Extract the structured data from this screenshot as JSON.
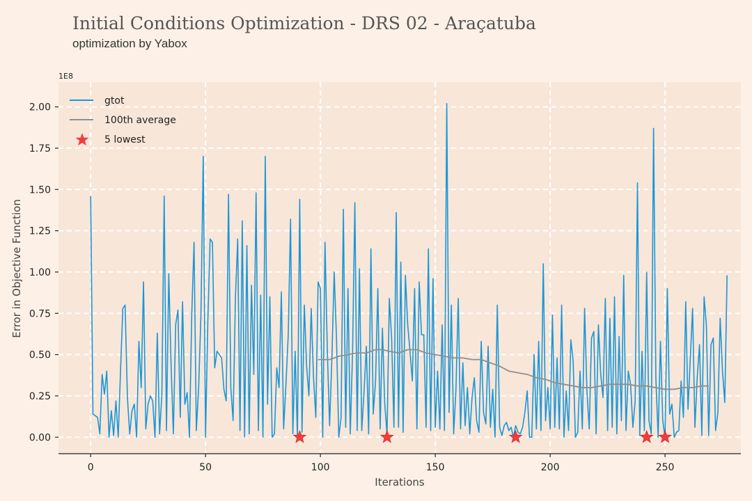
{
  "chart_data": {
    "type": "line",
    "title": "Initial Conditions Optimization - DRS 02 - Araçatuba",
    "subtitle": "optimization by Yabox",
    "xlabel": "Iterations",
    "ylabel": "Error in Objective Function",
    "y_scale_label": "1E8",
    "xlim": [
      -14,
      283
    ],
    "ylim": [
      -0.1,
      2.15
    ],
    "x_ticks": [
      0,
      50,
      100,
      150,
      200,
      250
    ],
    "y_ticks": [
      0.0,
      0.25,
      0.5,
      0.75,
      1.0,
      1.25,
      1.5,
      1.75,
      2.0
    ],
    "y_tick_labels": [
      "0.00",
      "0.25",
      "0.50",
      "0.75",
      "1.00",
      "1.25",
      "1.50",
      "1.75",
      "2.00"
    ],
    "grid": true,
    "legend_position": "top-left",
    "colors": {
      "background": "#fdf1e7",
      "plot_area": "#f8e6d9",
      "grid": "#ffffff",
      "gtot": "#1a96d6",
      "average": "#8f8f8f",
      "lowest": "#f23c3c"
    },
    "series": [
      {
        "name": "gtot",
        "x_start": 0,
        "values": [
          1.46,
          0.14,
          0.13,
          0.12,
          0.02,
          0.38,
          0.26,
          0.4,
          0.0,
          0.16,
          0.01,
          0.22,
          0.0,
          0.4,
          0.78,
          0.8,
          0.24,
          0.02,
          0.16,
          0.2,
          0.0,
          0.58,
          0.3,
          0.94,
          0.05,
          0.2,
          0.25,
          0.22,
          0.0,
          0.63,
          0.02,
          0.26,
          1.46,
          0.04,
          0.99,
          0.44,
          0.02,
          0.68,
          0.77,
          0.12,
          0.82,
          0.2,
          0.27,
          0.0,
          0.74,
          1.18,
          0.04,
          0.3,
          0.74,
          1.7,
          0.0,
          0.7,
          1.2,
          1.18,
          0.42,
          0.52,
          0.5,
          0.48,
          0.29,
          0.22,
          1.47,
          0.3,
          0.1,
          0.84,
          1.2,
          0.04,
          1.31,
          0.0,
          1.16,
          0.02,
          0.92,
          0.38,
          1.48,
          0.04,
          0.86,
          0.0,
          1.7,
          0.2,
          0.85,
          0.0,
          0.02,
          0.42,
          0.3,
          0.88,
          0.05,
          0.32,
          0.62,
          1.32,
          0.02,
          0.52,
          0.0,
          1.44,
          0.03,
          0.8,
          0.43,
          0.25,
          0.78,
          0.36,
          0.12,
          0.94,
          0.9,
          0.0,
          1.18,
          0.53,
          0.07,
          0.48,
          1.0,
          0.6,
          0.0,
          0.12,
          1.38,
          0.06,
          0.9,
          0.02,
          0.52,
          1.42,
          0.04,
          1.02,
          0.04,
          0.28,
          0.55,
          0.02,
          1.14,
          0.14,
          0.34,
          0.9,
          0.05,
          0.66,
          0.2,
          0.02,
          0.84,
          0.6,
          0.06,
          1.36,
          0.06,
          1.06,
          0.03,
          0.98,
          0.68,
          0.52,
          0.34,
          0.9,
          0.05,
          0.94,
          0.62,
          0.62,
          0.06,
          1.14,
          0.04,
          0.96,
          0.06,
          0.4,
          0.05,
          0.68,
          0.04,
          2.02,
          0.15,
          0.8,
          0.02,
          0.29,
          0.84,
          0.05,
          0.45,
          0.07,
          0.3,
          0.02,
          0.24,
          0.36,
          0.1,
          0.03,
          0.58,
          0.15,
          0.08,
          0.55,
          0.06,
          0.29,
          0.0,
          0.8,
          0.06,
          0.01,
          0.07,
          0.09,
          0.04,
          0.06,
          0.0,
          0.07,
          0.03,
          0.02,
          0.06,
          0.15,
          0.28,
          0.0,
          0.0,
          0.5,
          0.05,
          0.58,
          0.04,
          1.05,
          0.1,
          0.3,
          0.05,
          0.74,
          0.06,
          0.48,
          0.05,
          0.8,
          0.0,
          0.28,
          0.04,
          0.59,
          0.46,
          0.0,
          0.03,
          0.4,
          0.05,
          0.78,
          0.28,
          0.05,
          0.6,
          0.64,
          0.02,
          0.68,
          0.38,
          0.24,
          0.84,
          0.04,
          0.72,
          0.06,
          0.85,
          0.02,
          0.61,
          0.1,
          0.98,
          0.04,
          0.4,
          0.32,
          0.06,
          0.22,
          1.54,
          0.01,
          0.52,
          0.04,
          1.0,
          0.1,
          0.02,
          1.87,
          0.36,
          0.0,
          0.58,
          0.1,
          0.0,
          0.9,
          0.14,
          0.2,
          0.0,
          0.03,
          0.04,
          0.34,
          0.12,
          0.82,
          0.17,
          0.48,
          0.78,
          0.06,
          0.36,
          0.56,
          0.01,
          0.85,
          0.68,
          0.01,
          0.56,
          0.6,
          0.04,
          0.15,
          0.72,
          0.4,
          0.21,
          0.98
        ]
      },
      {
        "name": "100th average",
        "x": [
          99,
          104,
          108,
          112,
          116,
          120,
          124,
          127,
          130,
          134,
          138,
          142,
          146,
          150,
          154,
          158,
          162,
          166,
          170,
          174,
          178,
          182,
          186,
          190,
          194,
          198,
          202,
          206,
          210,
          214,
          218,
          222,
          226,
          230,
          234,
          238,
          242,
          246,
          250,
          254,
          258,
          262,
          266,
          269
        ],
        "values": [
          0.47,
          0.47,
          0.49,
          0.5,
          0.51,
          0.51,
          0.53,
          0.53,
          0.52,
          0.51,
          0.53,
          0.53,
          0.51,
          0.5,
          0.49,
          0.48,
          0.48,
          0.47,
          0.47,
          0.45,
          0.43,
          0.4,
          0.39,
          0.38,
          0.36,
          0.35,
          0.33,
          0.32,
          0.31,
          0.3,
          0.3,
          0.31,
          0.32,
          0.32,
          0.32,
          0.31,
          0.31,
          0.3,
          0.29,
          0.29,
          0.3,
          0.3,
          0.31,
          0.31
        ]
      },
      {
        "name": "5 lowest",
        "marker": "star",
        "x": [
          91,
          129,
          185,
          242,
          250
        ],
        "values": [
          0.0,
          0.0,
          0.0,
          0.0,
          0.0
        ]
      }
    ]
  }
}
